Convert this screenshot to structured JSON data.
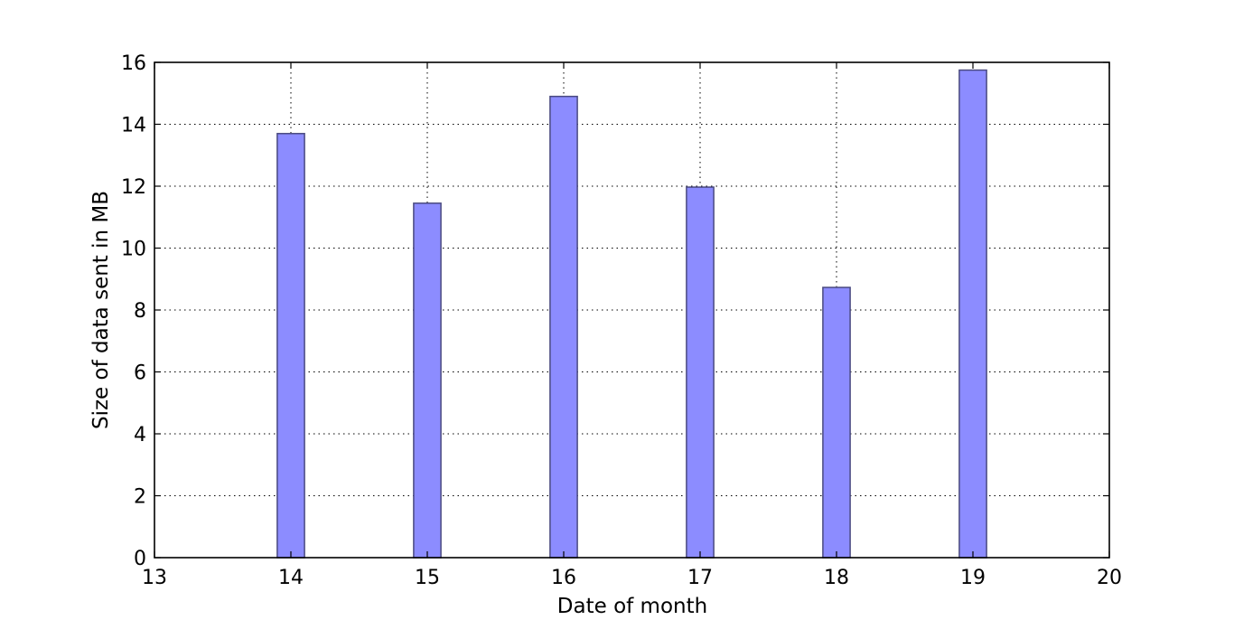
{
  "chart_data": {
    "type": "bar",
    "title": "",
    "xlabel": "Date of month",
    "ylabel": "Size of data sent in MB",
    "x": [
      14,
      15,
      16,
      17,
      18,
      19
    ],
    "values": [
      13.7,
      11.45,
      14.9,
      11.97,
      8.73,
      15.75
    ],
    "bar_width": 0.2,
    "xlim": [
      13,
      20
    ],
    "ylim": [
      0,
      16
    ],
    "xticks": [
      13,
      14,
      15,
      16,
      17,
      18,
      19,
      20
    ],
    "yticks": [
      0,
      2,
      4,
      6,
      8,
      10,
      12,
      14,
      16
    ],
    "grid": true,
    "bar_color": "#8c8cff",
    "bar_edge_color": "#4a4a80"
  }
}
